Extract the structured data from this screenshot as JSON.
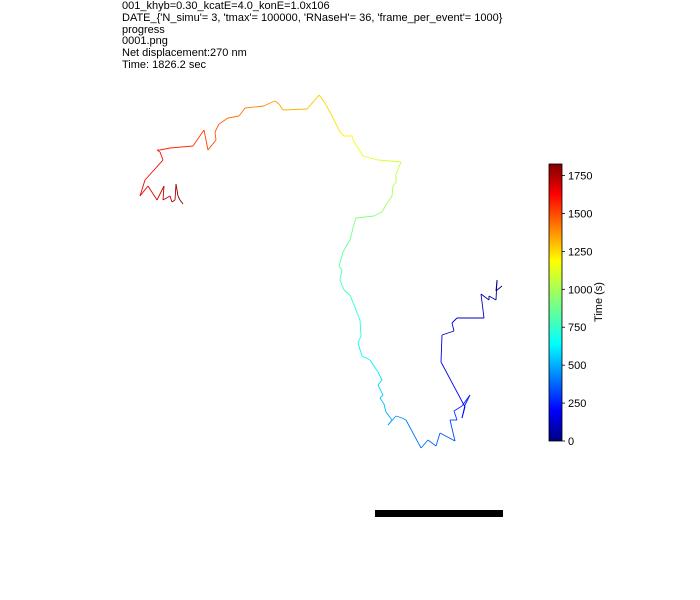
{
  "header": {
    "line1": "001_khyb=0.30_kcatE=4.0_konE=1.0x106",
    "line2": "DATE_{'N_simu'= 3, 'tmax'= 100000, 'RNaseH'= 36, 'frame_per_event'= 1000}",
    "line3": "progress",
    "line4": "0001.png",
    "line5": "Net displacement:270 nm",
    "line6": "Time: 1826.2 sec"
  },
  "chart_data": {
    "type": "line",
    "title": "",
    "xlabel": "",
    "ylabel": "",
    "colorbar": {
      "label": "Time (s)",
      "range": [
        0,
        1826.2
      ],
      "ticks": [
        0,
        250,
        500,
        750,
        1000,
        1250,
        1500,
        1750
      ],
      "tick_labels": [
        "0",
        "250",
        "500",
        "750",
        "1000",
        "1250",
        "1500",
        "1750"
      ],
      "colormap": "jet"
    },
    "axes_visible": false,
    "trajectory_note_units": "trajectory points in image plane coordinates (unlabeled axes)",
    "trajectory": [
      [
        502,
        286
      ],
      [
        496,
        291
      ],
      [
        497,
        280
      ],
      [
        496,
        300
      ],
      [
        489,
        296
      ],
      [
        489,
        300
      ],
      [
        481,
        294
      ],
      [
        484,
        318
      ],
      [
        457,
        318
      ],
      [
        452,
        323
      ],
      [
        454,
        331
      ],
      [
        442,
        335
      ],
      [
        441,
        362
      ],
      [
        465,
        407
      ],
      [
        462,
        418
      ],
      [
        465,
        405
      ],
      [
        470,
        395
      ],
      [
        462,
        406
      ],
      [
        454,
        411
      ],
      [
        457,
        420
      ],
      [
        450,
        420
      ],
      [
        455,
        441
      ],
      [
        440,
        433
      ],
      [
        436,
        446
      ],
      [
        428,
        440
      ],
      [
        421,
        448
      ],
      [
        406,
        420
      ],
      [
        402,
        418
      ],
      [
        396,
        416
      ],
      [
        388,
        425
      ],
      [
        392,
        420
      ],
      [
        386,
        412
      ],
      [
        384,
        404
      ],
      [
        380,
        398
      ],
      [
        383,
        395
      ],
      [
        378,
        385
      ],
      [
        382,
        380
      ],
      [
        378,
        372
      ],
      [
        370,
        360
      ],
      [
        362,
        356
      ],
      [
        358,
        343
      ],
      [
        361,
        336
      ],
      [
        360,
        320
      ],
      [
        356,
        310
      ],
      [
        350,
        295
      ],
      [
        344,
        290
      ],
      [
        340,
        280
      ],
      [
        342,
        270
      ],
      [
        339,
        266
      ],
      [
        343,
        252
      ],
      [
        350,
        240
      ],
      [
        353,
        228
      ],
      [
        356,
        218
      ],
      [
        374,
        216
      ],
      [
        382,
        212
      ],
      [
        386,
        205
      ],
      [
        392,
        196
      ],
      [
        393,
        186
      ],
      [
        396,
        182
      ],
      [
        396,
        174
      ],
      [
        401,
        162
      ],
      [
        378,
        160
      ],
      [
        363,
        156
      ],
      [
        358,
        148
      ],
      [
        353,
        140
      ],
      [
        352,
        136
      ],
      [
        344,
        136
      ],
      [
        340,
        132
      ],
      [
        333,
        118
      ],
      [
        325,
        103
      ],
      [
        319,
        95
      ],
      [
        314,
        101
      ],
      [
        307,
        109
      ],
      [
        283,
        110
      ],
      [
        279,
        104
      ],
      [
        275,
        101
      ],
      [
        270,
        103
      ],
      [
        264,
        106
      ],
      [
        245,
        108
      ],
      [
        239,
        116
      ],
      [
        228,
        118
      ],
      [
        219,
        124
      ],
      [
        215,
        132
      ],
      [
        216,
        140
      ],
      [
        208,
        150
      ],
      [
        204,
        130
      ],
      [
        193,
        146
      ],
      [
        170,
        148
      ],
      [
        160,
        150
      ],
      [
        157,
        150
      ],
      [
        160,
        152
      ],
      [
        163,
        160
      ],
      [
        145,
        180
      ],
      [
        140,
        196
      ],
      [
        148,
        186
      ],
      [
        157,
        200
      ],
      [
        164,
        186
      ],
      [
        163,
        200
      ],
      [
        170,
        196
      ],
      [
        172,
        202
      ],
      [
        175,
        200
      ],
      [
        176,
        184
      ],
      [
        178,
        196
      ],
      [
        180,
        200
      ],
      [
        183,
        204
      ]
    ]
  }
}
